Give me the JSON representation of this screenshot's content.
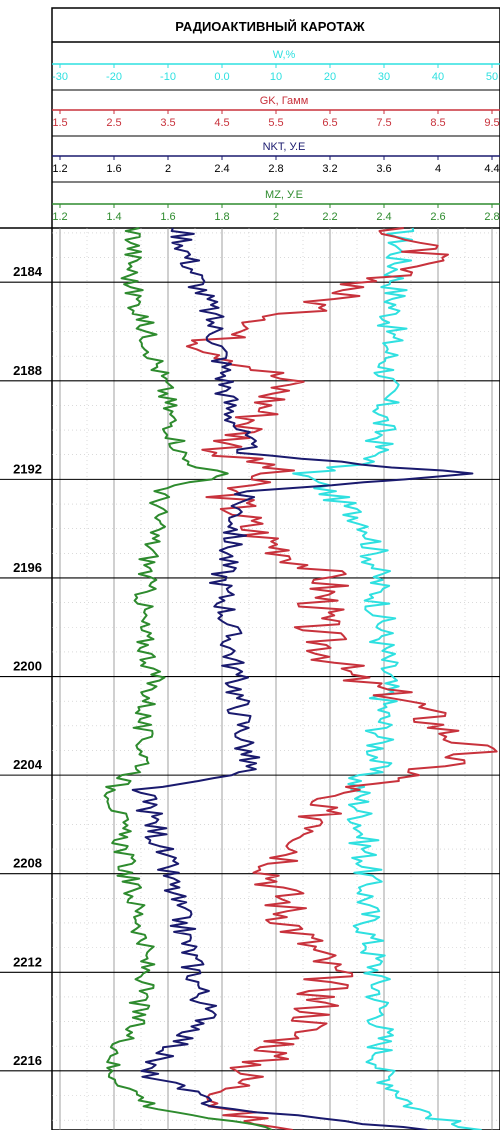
{
  "chart_data": {
    "type": "line",
    "title": "РАДИОАКТИВНЫЙ  КАРОТАЖ",
    "depth_axis": {
      "range": [
        2181.8,
        2218.4
      ],
      "labels": [
        2184,
        2188,
        2192,
        2196,
        2200,
        2204,
        2208,
        2212,
        2216
      ]
    },
    "tracks": [
      {
        "name": "W,%",
        "color": "#2FE0E0",
        "range": [
          -40,
          50
        ],
        "ticks": [
          "-30",
          "-20",
          "-10",
          "0.0",
          "10",
          "20",
          "30",
          "40",
          "50"
        ]
      },
      {
        "name": "GK, Гамм",
        "color": "#C8323C",
        "range": [
          1.5,
          9.5
        ],
        "ticks": [
          "1.5",
          "2.5",
          "3.5",
          "4.5",
          "5.5",
          "6.5",
          "7.5",
          "8.5",
          "9.5"
        ]
      },
      {
        "name": "NKT, У.Е",
        "color": "#1A1A6E",
        "range": [
          1.2,
          4.4
        ],
        "ticks": [
          "1.2",
          "1.6",
          "2",
          "2.4",
          "2.8",
          "3.2",
          "3.6",
          "4",
          "4.4"
        ]
      },
      {
        "name": "MZ, У.Е",
        "color": "#2E8B2E",
        "range": [
          1.2,
          2.8
        ],
        "ticks": [
          "1.2",
          "1.4",
          "1.6",
          "1.8",
          "2",
          "2.2",
          "2.4",
          "2.6",
          "2.8"
        ]
      }
    ],
    "series": [
      {
        "name": "W,%",
        "depth": [
          2181.8,
          2184,
          2186,
          2188,
          2190,
          2191.2,
          2191.8,
          2192.2,
          2194,
          2196,
          2198,
          2200,
          2202,
          2203.6,
          2204.2,
          2206,
          2208,
          2210,
          2212,
          2214,
          2216,
          2217.5,
          2218.4
        ],
        "values": [
          31,
          30,
          29,
          28,
          27,
          26,
          10,
          14,
          25,
          26,
          27,
          28,
          27,
          26,
          22,
          23,
          24,
          24,
          26,
          27,
          27,
          34,
          45
        ]
      },
      {
        "name": "GK, Гамм",
        "depth": [
          2181.8,
          2183,
          2185,
          2186.5,
          2188,
          2190,
          2191,
          2191.5,
          2192.5,
          2194,
          2196,
          2198,
          2200,
          2201,
          2202,
          2203,
          2204,
          2205,
          2206,
          2208,
          2210,
          2212,
          2214,
          2216,
          2217.5,
          2218.4
        ],
        "values": [
          7.8,
          8.3,
          6.2,
          4.2,
          5.7,
          5.0,
          4.5,
          5.5,
          4.6,
          5.0,
          6.5,
          6.2,
          6.8,
          8.0,
          8.5,
          9.2,
          8.0,
          6.0,
          6.5,
          5.5,
          5.8,
          6.5,
          6.2,
          5.0,
          4.5,
          5.5
        ]
      },
      {
        "name": "NKT, У.Е",
        "depth": [
          2181.8,
          2183,
          2185,
          2187,
          2189,
          2191,
          2191.8,
          2192.5,
          2194,
          2196,
          2198,
          2200,
          2202,
          2203.8,
          2204.6,
          2206,
          2208,
          2210,
          2212,
          2214,
          2216,
          2217.5,
          2218.4
        ],
        "values": [
          2.1,
          2.15,
          2.3,
          2.4,
          2.45,
          2.6,
          4.3,
          2.55,
          2.5,
          2.4,
          2.45,
          2.5,
          2.55,
          2.6,
          1.8,
          1.9,
          2.0,
          2.1,
          2.2,
          2.3,
          1.8,
          2.4,
          3.9
        ]
      },
      {
        "name": "MZ, У.Е",
        "depth": [
          2181.8,
          2184,
          2186,
          2188,
          2190,
          2191.2,
          2191.8,
          2192.4,
          2194,
          2196,
          2198,
          2200,
          2202,
          2203.6,
          2204.5,
          2206,
          2208,
          2210,
          2212,
          2214,
          2216,
          2217.5,
          2218.4
        ],
        "values": [
          1.48,
          1.46,
          1.52,
          1.58,
          1.62,
          1.66,
          1.8,
          1.58,
          1.55,
          1.52,
          1.5,
          1.55,
          1.5,
          1.52,
          1.4,
          1.42,
          1.45,
          1.5,
          1.52,
          1.48,
          1.38,
          1.55,
          2.0
        ]
      }
    ],
    "grid": true
  }
}
